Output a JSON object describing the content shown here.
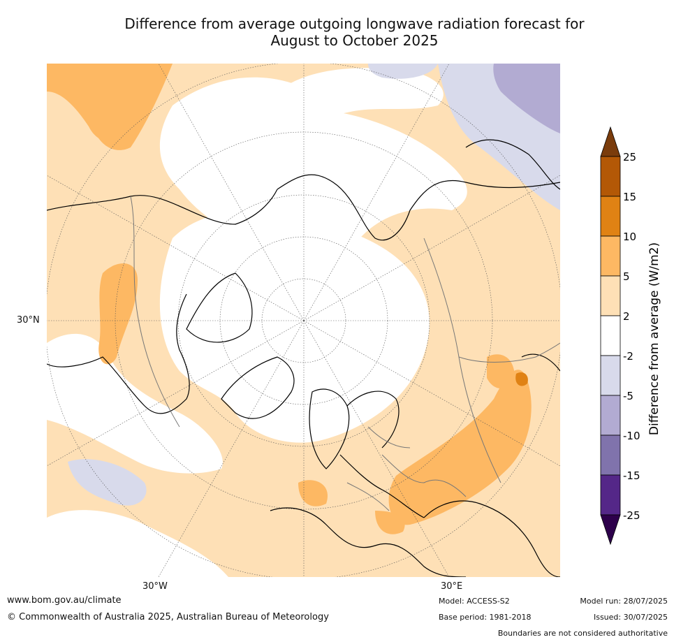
{
  "title_line1": "Difference from average outgoing longwave radiation forecast for",
  "title_line2": "August to October 2025",
  "map": {
    "lat_label": "30°N",
    "lon_labels": {
      "west": "30°W",
      "east": "30°E"
    }
  },
  "legend": {
    "label": "Difference from average (W/m2)",
    "ticks": [
      "25",
      "15",
      "10",
      "5",
      "2",
      "-2",
      "-5",
      "-10",
      "-15",
      "-25"
    ],
    "colors": {
      "gt25": "#7a3c0c",
      "15_25": "#b35806",
      "10_15": "#e08214",
      "5_10": "#fdb863",
      "2_5": "#fee0b6",
      "m2_2": "#ffffff",
      "m5_m2": "#d8daeb",
      "m10_m5": "#b2abd2",
      "m15_m10": "#8073ac",
      "m25_m15": "#542788",
      "lt_m25": "#2d004b"
    }
  },
  "footer": {
    "website": "www.bom.gov.au/climate",
    "copyright": "© Commonwealth of Australia 2025, Australian Bureau of Meteorology",
    "model": "Model: ACCESS-S2",
    "base_period": "Base period: 1981-2018",
    "model_run": "Model run: 28/07/2025",
    "issued": "Issued: 30/07/2025",
    "disclaimer": "Boundaries are not considered authoritative"
  }
}
